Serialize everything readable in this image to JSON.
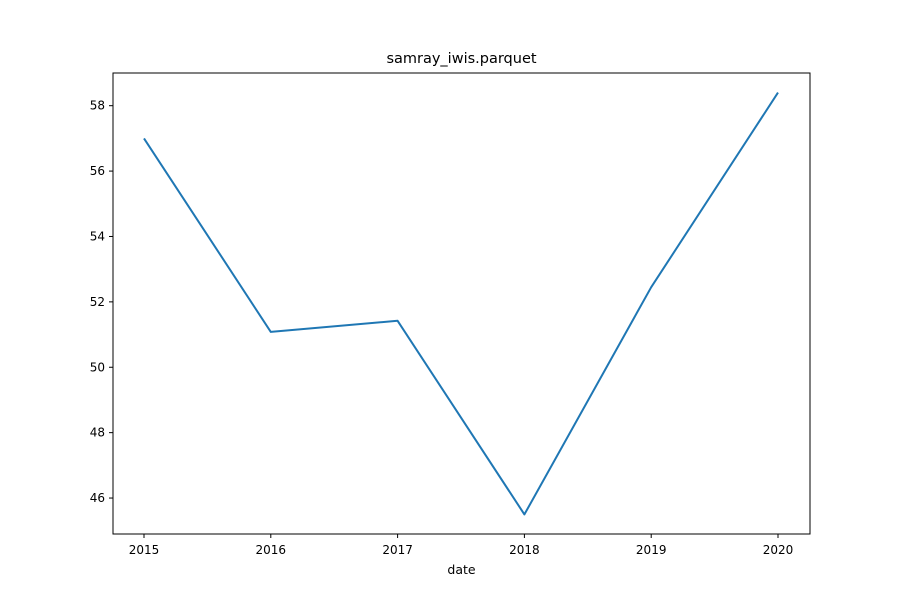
{
  "chart_data": {
    "type": "line",
    "title": "samray_iwis.parquet",
    "xlabel": "date",
    "ylabel": "",
    "x": [
      "2015",
      "2016",
      "2017",
      "2018",
      "2019",
      "2020"
    ],
    "series": [
      {
        "values": [
          57.0,
          51.08,
          51.42,
          45.5,
          52.45,
          58.4
        ],
        "color": "#1f77b4"
      }
    ],
    "ylim": [
      44.9,
      59.0
    ],
    "yticks": [
      46,
      48,
      50,
      52,
      54,
      56,
      58
    ],
    "grid": false,
    "legend": "none"
  }
}
